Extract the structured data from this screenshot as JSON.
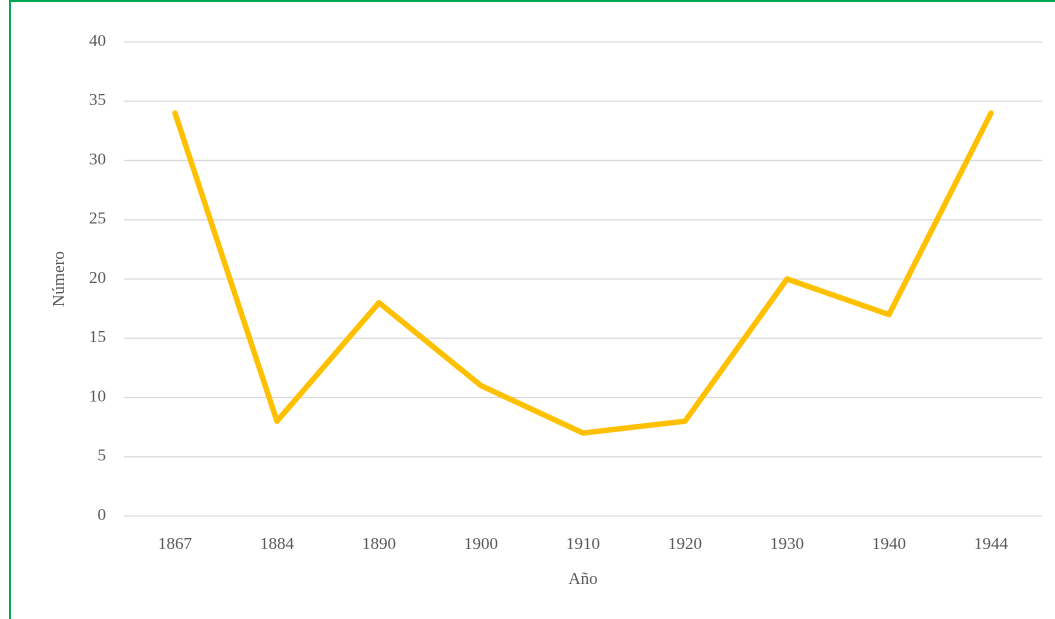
{
  "chart_data": {
    "type": "line",
    "categories": [
      "1867",
      "1884",
      "1890",
      "1900",
      "1910",
      "1920",
      "1930",
      "1940",
      "1944"
    ],
    "values": [
      34,
      8,
      18,
      11,
      7,
      8,
      20,
      17,
      34
    ],
    "color": "#ffc000",
    "xlabel": "Año",
    "ylabel": "Número",
    "ylim": [
      0,
      40
    ],
    "yticks": [
      0,
      5,
      10,
      15,
      20,
      25,
      30,
      35,
      40
    ],
    "grid": true
  }
}
